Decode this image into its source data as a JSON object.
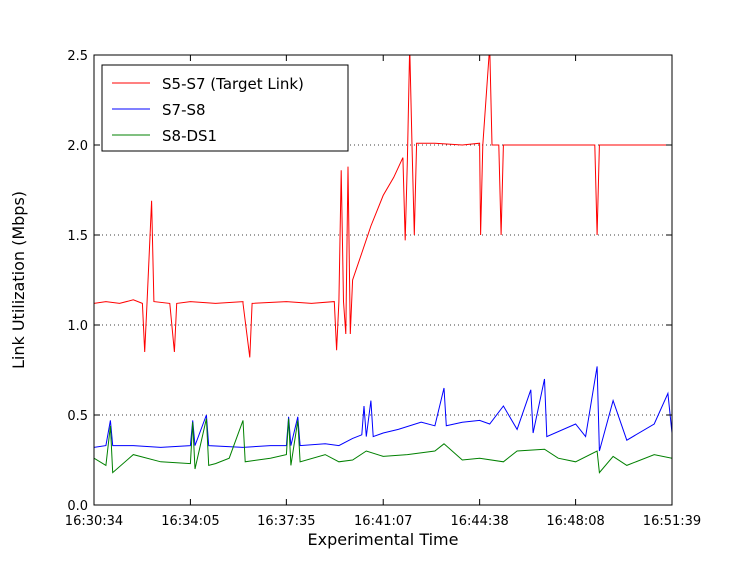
{
  "chart_data": {
    "type": "line",
    "title": "",
    "xlabel": "Experimental Time",
    "ylabel": "Link Utilization (Mbps)",
    "xlim": [
      "16:30:34",
      "16:51:39"
    ],
    "ylim": [
      0,
      2.5
    ],
    "x_ticks": [
      "16:30:34",
      "16:34:05",
      "16:37:35",
      "16:41:07",
      "16:44:38",
      "16:48:08",
      "16:51:39"
    ],
    "y_ticks": [
      "0.0",
      "0.5",
      "1.0",
      "1.5",
      "2.0",
      "2.5"
    ],
    "grid": "horizontal-dotted",
    "legend_position": "top-left",
    "series": [
      {
        "name": "S5-S7 (Target Link)",
        "color": "#ff0000",
        "points": [
          [
            "16:30:34",
            1.12
          ],
          [
            "16:31:00",
            1.13
          ],
          [
            "16:31:30",
            1.12
          ],
          [
            "16:32:00",
            1.14
          ],
          [
            "16:32:20",
            1.12
          ],
          [
            "16:32:25",
            0.85
          ],
          [
            "16:32:30",
            1.12
          ],
          [
            "16:32:40",
            1.69
          ],
          [
            "16:32:45",
            1.13
          ],
          [
            "16:33:20",
            1.12
          ],
          [
            "16:33:30",
            0.85
          ],
          [
            "16:33:35",
            1.12
          ],
          [
            "16:34:05",
            1.13
          ],
          [
            "16:35:00",
            1.12
          ],
          [
            "16:36:00",
            1.13
          ],
          [
            "16:36:00",
            1.12
          ],
          [
            "16:36:15",
            0.82
          ],
          [
            "16:36:20",
            1.12
          ],
          [
            "16:37:35",
            1.13
          ],
          [
            "16:38:30",
            1.12
          ],
          [
            "16:39:20",
            1.13
          ],
          [
            "16:39:25",
            0.86
          ],
          [
            "16:39:30",
            1.13
          ],
          [
            "16:39:35",
            1.86
          ],
          [
            "16:39:40",
            1.13
          ],
          [
            "16:39:45",
            0.95
          ],
          [
            "16:39:50",
            1.88
          ],
          [
            "16:39:55",
            0.95
          ],
          [
            "16:40:00",
            1.25
          ],
          [
            "16:40:20",
            1.4
          ],
          [
            "16:40:40",
            1.55
          ],
          [
            "16:41:07",
            1.72
          ],
          [
            "16:41:30",
            1.82
          ],
          [
            "16:41:50",
            1.93
          ],
          [
            "16:41:55",
            1.47
          ],
          [
            "16:42:00",
            1.92
          ],
          [
            "16:42:05",
            2.55
          ],
          [
            "16:42:10",
            2.0
          ],
          [
            "16:42:15",
            1.5
          ],
          [
            "16:42:20",
            2.01
          ],
          [
            "16:43:00",
            2.01
          ],
          [
            "16:44:00",
            2.0
          ],
          [
            "16:44:38",
            2.01
          ],
          [
            "16:44:40",
            1.5
          ],
          [
            "16:44:45",
            2.0
          ],
          [
            "16:45:00",
            2.55
          ],
          [
            "16:45:05",
            2.0
          ],
          [
            "16:45:20",
            2.0
          ],
          [
            "16:45:25",
            1.5
          ],
          [
            "16:45:30",
            2.0
          ],
          [
            "16:46:30",
            2.0
          ],
          [
            "16:48:08",
            2.0
          ],
          [
            "16:48:50",
            2.0
          ],
          [
            "16:48:55",
            1.5
          ],
          [
            "16:49:00",
            2.0
          ],
          [
            "16:50:00",
            2.0
          ],
          [
            "16:51:39",
            2.0
          ]
        ]
      },
      {
        "name": "S7-S8",
        "color": "#0000ff",
        "points": [
          [
            "16:30:34",
            0.32
          ],
          [
            "16:31:00",
            0.33
          ],
          [
            "16:31:10",
            0.47
          ],
          [
            "16:31:15",
            0.33
          ],
          [
            "16:32:00",
            0.33
          ],
          [
            "16:33:00",
            0.32
          ],
          [
            "16:34:05",
            0.33
          ],
          [
            "16:34:10",
            0.47
          ],
          [
            "16:34:15",
            0.33
          ],
          [
            "16:34:40",
            0.5
          ],
          [
            "16:34:45",
            0.33
          ],
          [
            "16:36:00",
            0.32
          ],
          [
            "16:37:00",
            0.33
          ],
          [
            "16:37:35",
            0.33
          ],
          [
            "16:37:40",
            0.49
          ],
          [
            "16:37:45",
            0.33
          ],
          [
            "16:38:00",
            0.49
          ],
          [
            "16:38:05",
            0.33
          ],
          [
            "16:39:00",
            0.34
          ],
          [
            "16:39:30",
            0.33
          ],
          [
            "16:40:00",
            0.37
          ],
          [
            "16:40:20",
            0.39
          ],
          [
            "16:40:25",
            0.55
          ],
          [
            "16:40:30",
            0.38
          ],
          [
            "16:40:40",
            0.58
          ],
          [
            "16:40:45",
            0.38
          ],
          [
            "16:41:07",
            0.4
          ],
          [
            "16:41:40",
            0.42
          ],
          [
            "16:42:30",
            0.46
          ],
          [
            "16:43:00",
            0.44
          ],
          [
            "16:43:20",
            0.65
          ],
          [
            "16:43:25",
            0.44
          ],
          [
            "16:44:00",
            0.46
          ],
          [
            "16:44:38",
            0.47
          ],
          [
            "16:45:00",
            0.45
          ],
          [
            "16:45:30",
            0.55
          ],
          [
            "16:46:00",
            0.42
          ],
          [
            "16:46:30",
            0.64
          ],
          [
            "16:46:35",
            0.4
          ],
          [
            "16:47:00",
            0.7
          ],
          [
            "16:47:05",
            0.38
          ],
          [
            "16:48:08",
            0.45
          ],
          [
            "16:48:30",
            0.38
          ],
          [
            "16:48:55",
            0.77
          ],
          [
            "16:49:00",
            0.3
          ],
          [
            "16:49:30",
            0.58
          ],
          [
            "16:50:00",
            0.36
          ],
          [
            "16:51:00",
            0.45
          ],
          [
            "16:51:30",
            0.62
          ],
          [
            "16:51:39",
            0.4
          ]
        ]
      },
      {
        "name": "S8-DS1",
        "color": "#008000",
        "points": [
          [
            "16:30:34",
            0.26
          ],
          [
            "16:31:00",
            0.22
          ],
          [
            "16:31:10",
            0.44
          ],
          [
            "16:31:15",
            0.18
          ],
          [
            "16:32:00",
            0.28
          ],
          [
            "16:33:00",
            0.24
          ],
          [
            "16:34:05",
            0.23
          ],
          [
            "16:34:10",
            0.46
          ],
          [
            "16:34:15",
            0.2
          ],
          [
            "16:34:40",
            0.48
          ],
          [
            "16:34:45",
            0.22
          ],
          [
            "16:35:00",
            0.23
          ],
          [
            "16:35:30",
            0.26
          ],
          [
            "16:36:00",
            0.47
          ],
          [
            "16:36:05",
            0.24
          ],
          [
            "16:37:00",
            0.26
          ],
          [
            "16:37:35",
            0.28
          ],
          [
            "16:37:40",
            0.48
          ],
          [
            "16:37:45",
            0.22
          ],
          [
            "16:38:00",
            0.47
          ],
          [
            "16:38:05",
            0.24
          ],
          [
            "16:39:00",
            0.28
          ],
          [
            "16:39:30",
            0.24
          ],
          [
            "16:40:00",
            0.25
          ],
          [
            "16:40:30",
            0.3
          ],
          [
            "16:41:07",
            0.27
          ],
          [
            "16:42:00",
            0.28
          ],
          [
            "16:43:00",
            0.3
          ],
          [
            "16:43:20",
            0.34
          ],
          [
            "16:44:00",
            0.25
          ],
          [
            "16:44:38",
            0.26
          ],
          [
            "16:45:30",
            0.24
          ],
          [
            "16:46:00",
            0.3
          ],
          [
            "16:47:00",
            0.31
          ],
          [
            "16:47:30",
            0.26
          ],
          [
            "16:48:08",
            0.24
          ],
          [
            "16:48:55",
            0.3
          ],
          [
            "16:49:00",
            0.18
          ],
          [
            "16:49:30",
            0.27
          ],
          [
            "16:50:00",
            0.22
          ],
          [
            "16:51:00",
            0.28
          ],
          [
            "16:51:39",
            0.26
          ]
        ]
      }
    ]
  }
}
